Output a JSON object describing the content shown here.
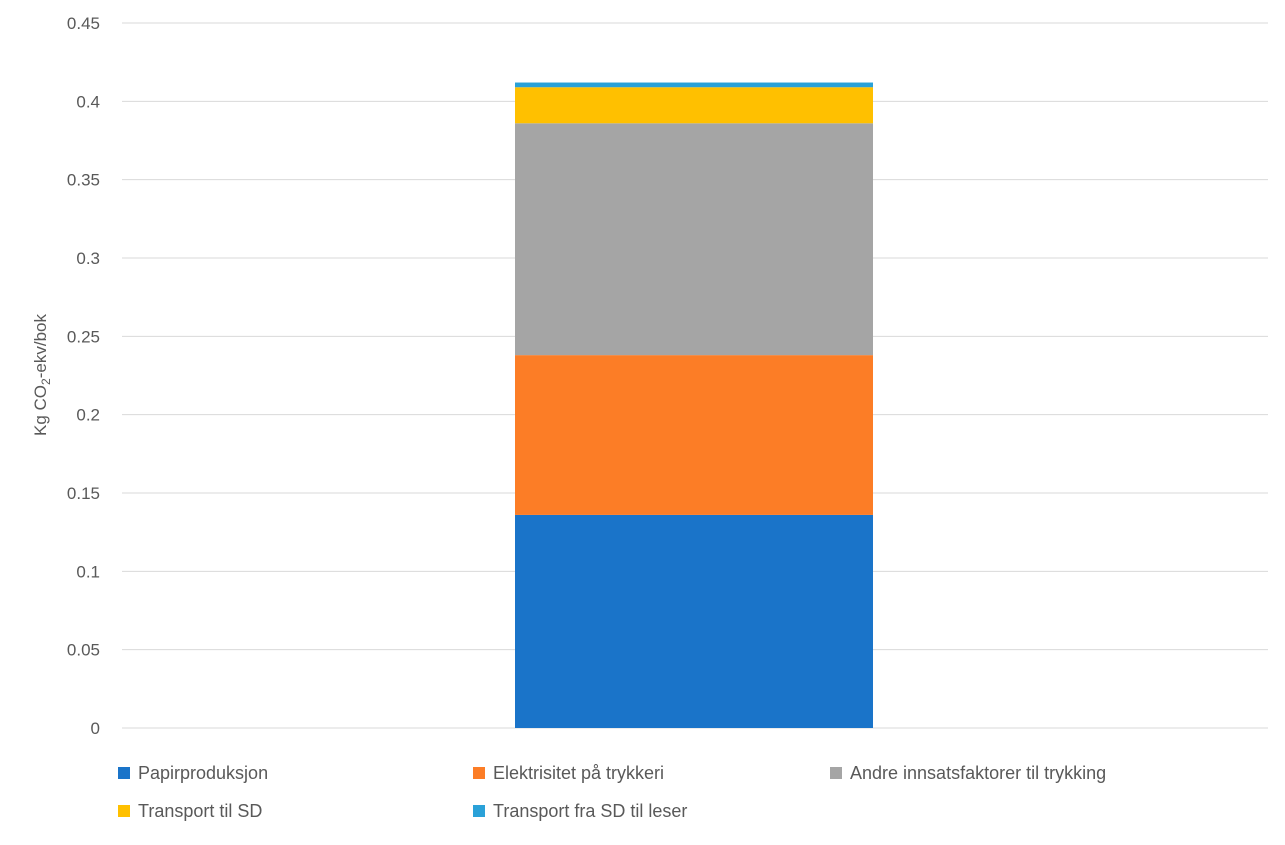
{
  "chart_data": {
    "type": "bar",
    "stacked": true,
    "categories": [
      ""
    ],
    "ylabel": "Kg CO₂-ekv/bok",
    "ylim": [
      0,
      0.45
    ],
    "yticks": [
      "0",
      "0.05",
      "0.1",
      "0.15",
      "0.2",
      "0.25",
      "0.3",
      "0.35",
      "0.4",
      "0.45"
    ],
    "ytick_values": [
      0,
      0.05,
      0.1,
      0.15,
      0.2,
      0.25,
      0.3,
      0.35,
      0.4,
      0.45
    ],
    "grid": true,
    "legend_position": "bottom",
    "series": [
      {
        "name": "Papirproduksjon",
        "values": [
          0.136
        ],
        "color": "#1a74c9"
      },
      {
        "name": "Elektrisitet på trykkeri",
        "values": [
          0.102
        ],
        "color": "#fc7d26"
      },
      {
        "name": "Andre innsatsfaktorer til trykking",
        "values": [
          0.148
        ],
        "color": "#a5a5a5"
      },
      {
        "name": "Transport til SD",
        "values": [
          0.023
        ],
        "color": "#ffc000"
      },
      {
        "name": "Transport fra SD til leser",
        "values": [
          0.003
        ],
        "color": "#2aa1d8"
      }
    ]
  }
}
